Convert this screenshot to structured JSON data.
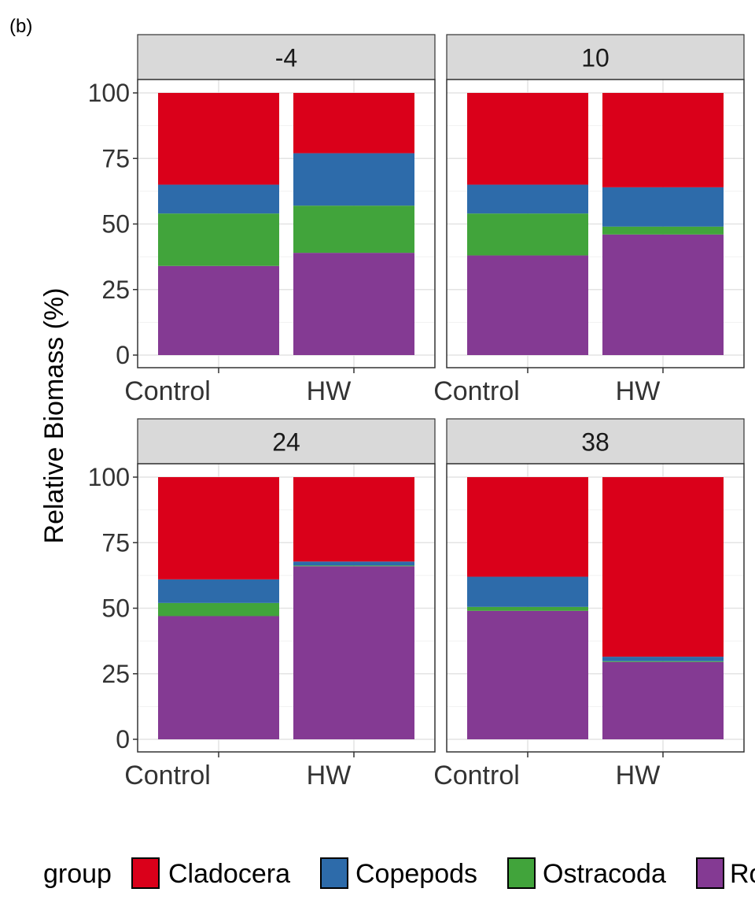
{
  "figure": {
    "panel_label": "(b)"
  },
  "colors": {
    "Cladocera": "#DA001A",
    "Copepods": "#2D6BAA",
    "Ostracoda": "#41A43B",
    "Rotifera": "#843A93"
  },
  "chart_data": {
    "type": "bar",
    "stacked": true,
    "ylabel": "Relative Biomass (%)",
    "xlabel": "",
    "ylim": [
      0,
      100
    ],
    "yticks": [
      0,
      25,
      50,
      75,
      100
    ],
    "grid": true,
    "legend": {
      "position": "bottom",
      "title": "group",
      "entries": [
        "Cladocera",
        "Copepods",
        "Ostracoda",
        "Ro"
      ]
    },
    "facets": [
      "-4",
      "10",
      "24",
      "38"
    ],
    "categories": [
      "Control",
      "HW"
    ],
    "stack_order": [
      "Rotifera",
      "Ostracoda",
      "Copepods",
      "Cladocera"
    ],
    "panels": [
      {
        "facet": "-4",
        "bars": [
          {
            "category": "Control",
            "values": {
              "Rotifera": 34,
              "Ostracoda": 20,
              "Copepods": 11,
              "Cladocera": 35
            }
          },
          {
            "category": "HW",
            "values": {
              "Rotifera": 39,
              "Ostracoda": 18,
              "Copepods": 20,
              "Cladocera": 23
            }
          }
        ]
      },
      {
        "facet": "10",
        "bars": [
          {
            "category": "Control",
            "values": {
              "Rotifera": 38,
              "Ostracoda": 16,
              "Copepods": 11,
              "Cladocera": 35
            }
          },
          {
            "category": "HW",
            "values": {
              "Rotifera": 46,
              "Ostracoda": 3,
              "Copepods": 15,
              "Cladocera": 36
            }
          }
        ]
      },
      {
        "facet": "24",
        "bars": [
          {
            "category": "Control",
            "values": {
              "Rotifera": 47,
              "Ostracoda": 5,
              "Copepods": 9,
              "Cladocera": 39
            }
          },
          {
            "category": "HW",
            "values": {
              "Rotifera": 66,
              "Ostracoda": 0.3,
              "Copepods": 1.5,
              "Cladocera": 32.2
            }
          }
        ]
      },
      {
        "facet": "38",
        "bars": [
          {
            "category": "Control",
            "values": {
              "Rotifera": 49,
              "Ostracoda": 1.5,
              "Copepods": 11.5,
              "Cladocera": 38
            }
          },
          {
            "category": "HW",
            "values": {
              "Rotifera": 29.5,
              "Ostracoda": 0.3,
              "Copepods": 1.7,
              "Cladocera": 68.5
            }
          }
        ]
      }
    ]
  }
}
